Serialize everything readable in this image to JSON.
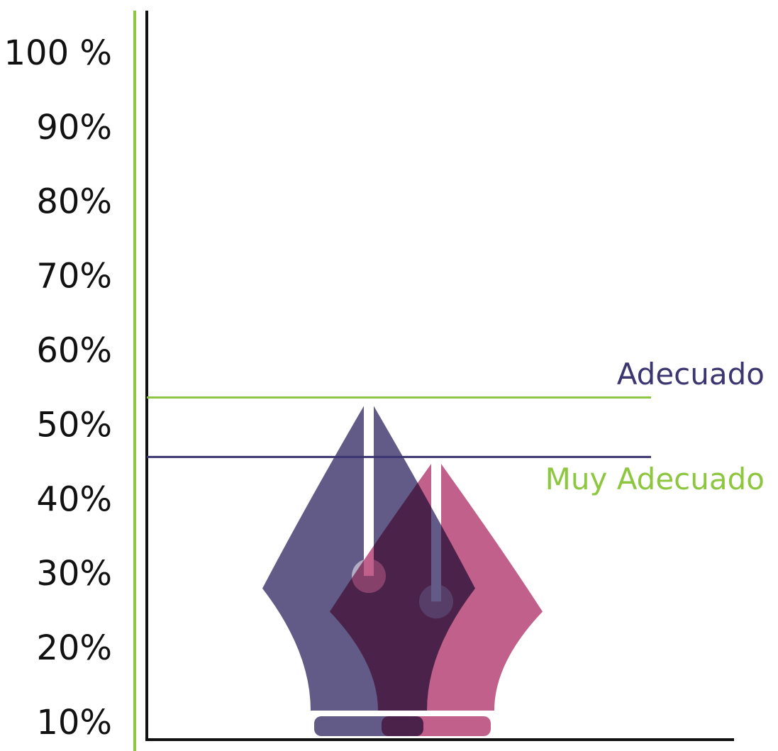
{
  "chart_data": {
    "type": "pen-nib",
    "ylim": [
      8,
      106
    ],
    "yticks": [
      {
        "value": 100,
        "label": "100 %"
      },
      {
        "value": 90,
        "label": "90%"
      },
      {
        "value": 80,
        "label": "80%"
      },
      {
        "value": 70,
        "label": "70%"
      },
      {
        "value": 60,
        "label": "60%"
      },
      {
        "value": 50,
        "label": "50%"
      },
      {
        "value": 40,
        "label": "40%"
      },
      {
        "value": 30,
        "label": "30%"
      },
      {
        "value": 20,
        "label": "20%"
      },
      {
        "value": 10,
        "label": "10%"
      }
    ],
    "series": [
      {
        "name": "Adecuado",
        "color": "#625a87",
        "line_color": "#8dc63f",
        "label_color": "#3b3570",
        "values": [
          54
        ]
      },
      {
        "name": "Muy Adecuado",
        "color": "#c0608b",
        "line_color": "#3b3570",
        "label_color": "#8dc63f",
        "values": [
          46
        ]
      }
    ]
  }
}
